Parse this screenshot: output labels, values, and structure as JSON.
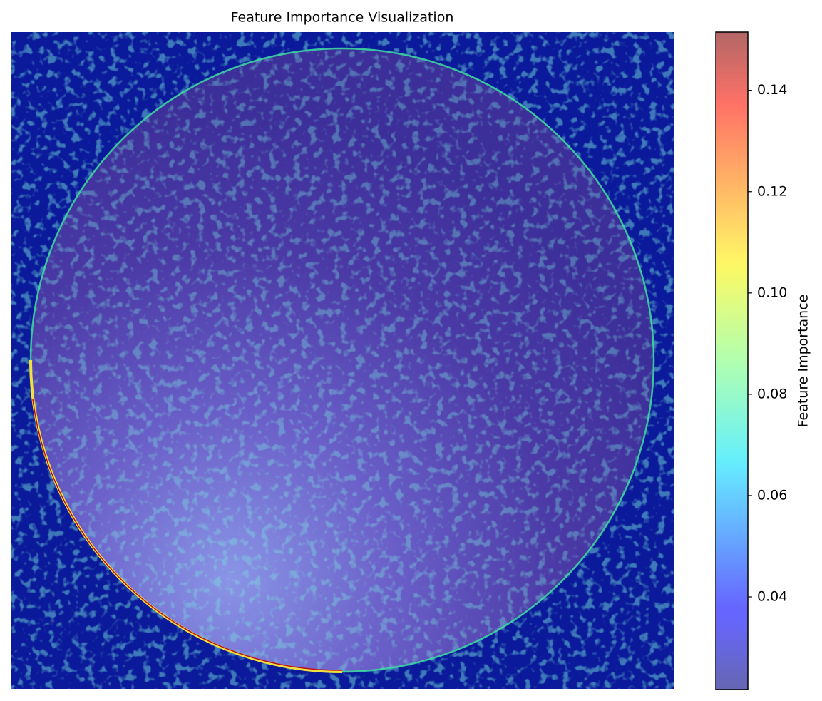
{
  "chart_data": {
    "type": "heatmap",
    "title": "Feature Importance Visualization",
    "colorbar_label": "Feature Importance",
    "colormap": "jet",
    "alpha": 0.6,
    "clim": [
      0.0217,
      0.1515
    ],
    "cticks": [
      0.04,
      0.06,
      0.08,
      {
        "value": 0.1,
        "label": "0.10"
      },
      0.12,
      0.14
    ]
  }
}
